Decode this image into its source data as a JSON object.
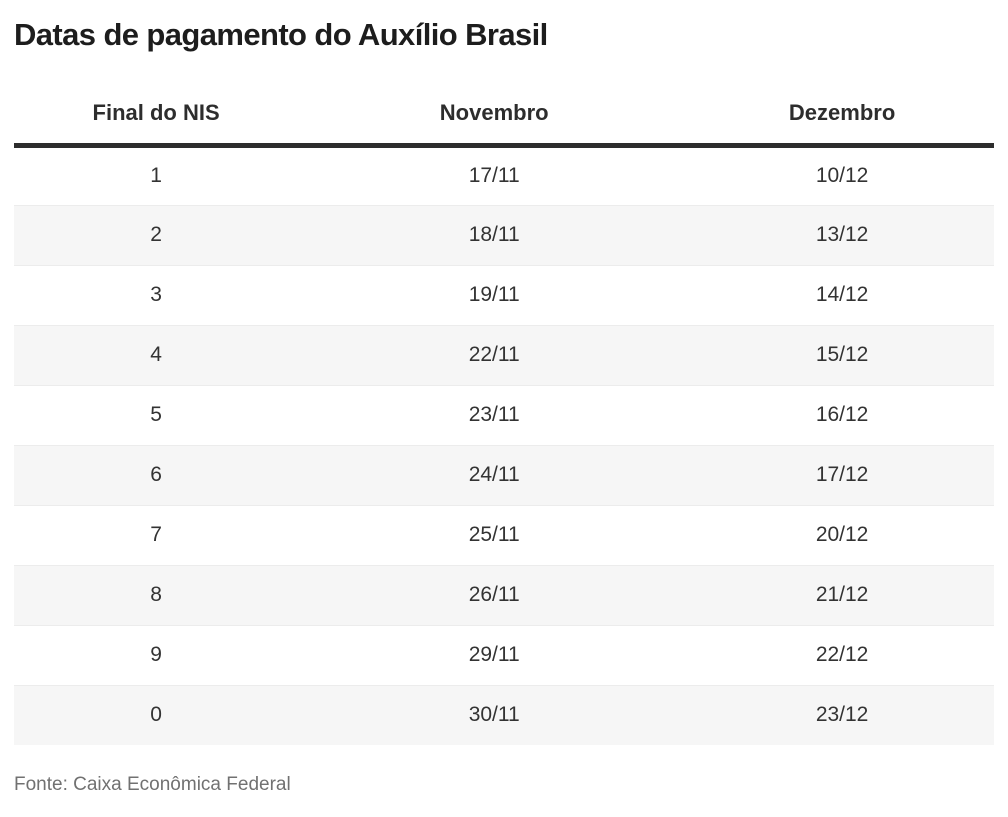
{
  "title": "Datas de pagamento do Auxílio Brasil",
  "source": "Fonte: Caixa Econômica Federal",
  "table": {
    "headers": [
      "Final do NIS",
      "Novembro",
      "Dezembro"
    ],
    "rows": [
      [
        "1",
        "17/11",
        "10/12"
      ],
      [
        "2",
        "18/11",
        "13/12"
      ],
      [
        "3",
        "19/11",
        "14/12"
      ],
      [
        "4",
        "22/11",
        "15/12"
      ],
      [
        "5",
        "23/11",
        "16/12"
      ],
      [
        "6",
        "24/11",
        "17/12"
      ],
      [
        "7",
        "25/11",
        "20/12"
      ],
      [
        "8",
        "26/11",
        "21/12"
      ],
      [
        "9",
        "29/11",
        "22/12"
      ],
      [
        "0",
        "30/11",
        "23/12"
      ]
    ]
  },
  "chart_data": {
    "type": "table",
    "title": "Datas de pagamento do Auxílio Brasil",
    "columns": [
      "Final do NIS",
      "Novembro",
      "Dezembro"
    ],
    "rows": [
      [
        "1",
        "17/11",
        "10/12"
      ],
      [
        "2",
        "18/11",
        "13/12"
      ],
      [
        "3",
        "19/11",
        "14/12"
      ],
      [
        "4",
        "22/11",
        "15/12"
      ],
      [
        "5",
        "23/11",
        "16/12"
      ],
      [
        "6",
        "24/11",
        "17/12"
      ],
      [
        "7",
        "25/11",
        "20/12"
      ],
      [
        "8",
        "26/11",
        "21/12"
      ],
      [
        "9",
        "29/11",
        "22/12"
      ],
      [
        "0",
        "30/11",
        "23/12"
      ]
    ],
    "source": "Fonte: Caixa Econômica Federal",
    "layout_hints": {
      "zebra_striping": true,
      "header_rule": "thick dark bottom border",
      "column_widths_percent": [
        29,
        40,
        31
      ],
      "cell_alignment": "center"
    }
  },
  "colors": {
    "title_text": "#1d1d1d",
    "header_text": "#2d2d2d",
    "header_rule": "#2d2d2d",
    "cell_text": "#333333",
    "row_alt_background": "#f6f6f6",
    "row_border": "#ececec",
    "source_text": "#717171",
    "background": "#ffffff"
  }
}
